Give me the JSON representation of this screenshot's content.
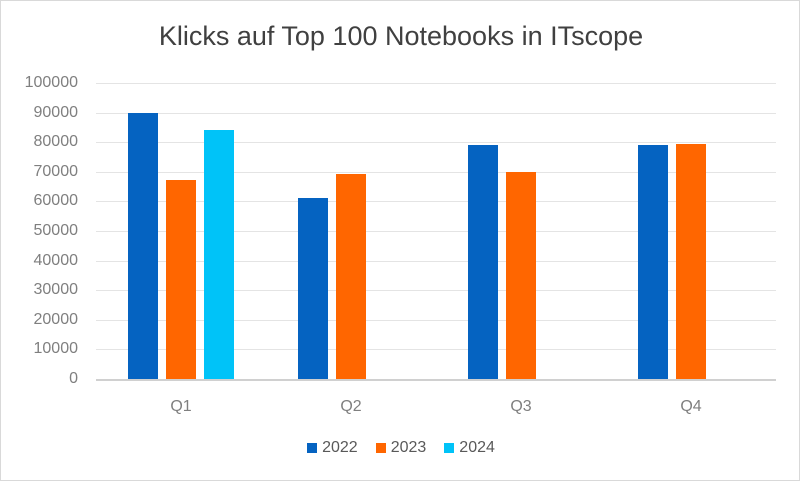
{
  "chart_data": {
    "type": "bar",
    "title": "Klicks auf Top 100 Notebooks in ITscope",
    "xlabel": "",
    "ylabel": "",
    "categories": [
      "Q1",
      "Q2",
      "Q3",
      "Q4"
    ],
    "series": [
      {
        "name": "2022",
        "color": "#0563C1",
        "values": [
          89800,
          61100,
          78900,
          79200
        ]
      },
      {
        "name": "2023",
        "color": "#FF6600",
        "values": [
          67200,
          69200,
          69900,
          79400
        ]
      },
      {
        "name": "2024",
        "color": "#00C3F8",
        "values": [
          84100,
          null,
          null,
          null
        ]
      }
    ],
    "ylim": [
      0,
      100000
    ],
    "yticks": [
      "0",
      "10000",
      "20000",
      "30000",
      "40000",
      "50000",
      "60000",
      "70000",
      "80000",
      "90000",
      "100000"
    ],
    "grid": true,
    "legend_position": "bottom"
  },
  "legend": {
    "items": [
      {
        "label": "2022",
        "color": "#0563C1"
      },
      {
        "label": "2023",
        "color": "#FF6600"
      },
      {
        "label": "2024",
        "color": "#00C3F8"
      }
    ]
  }
}
